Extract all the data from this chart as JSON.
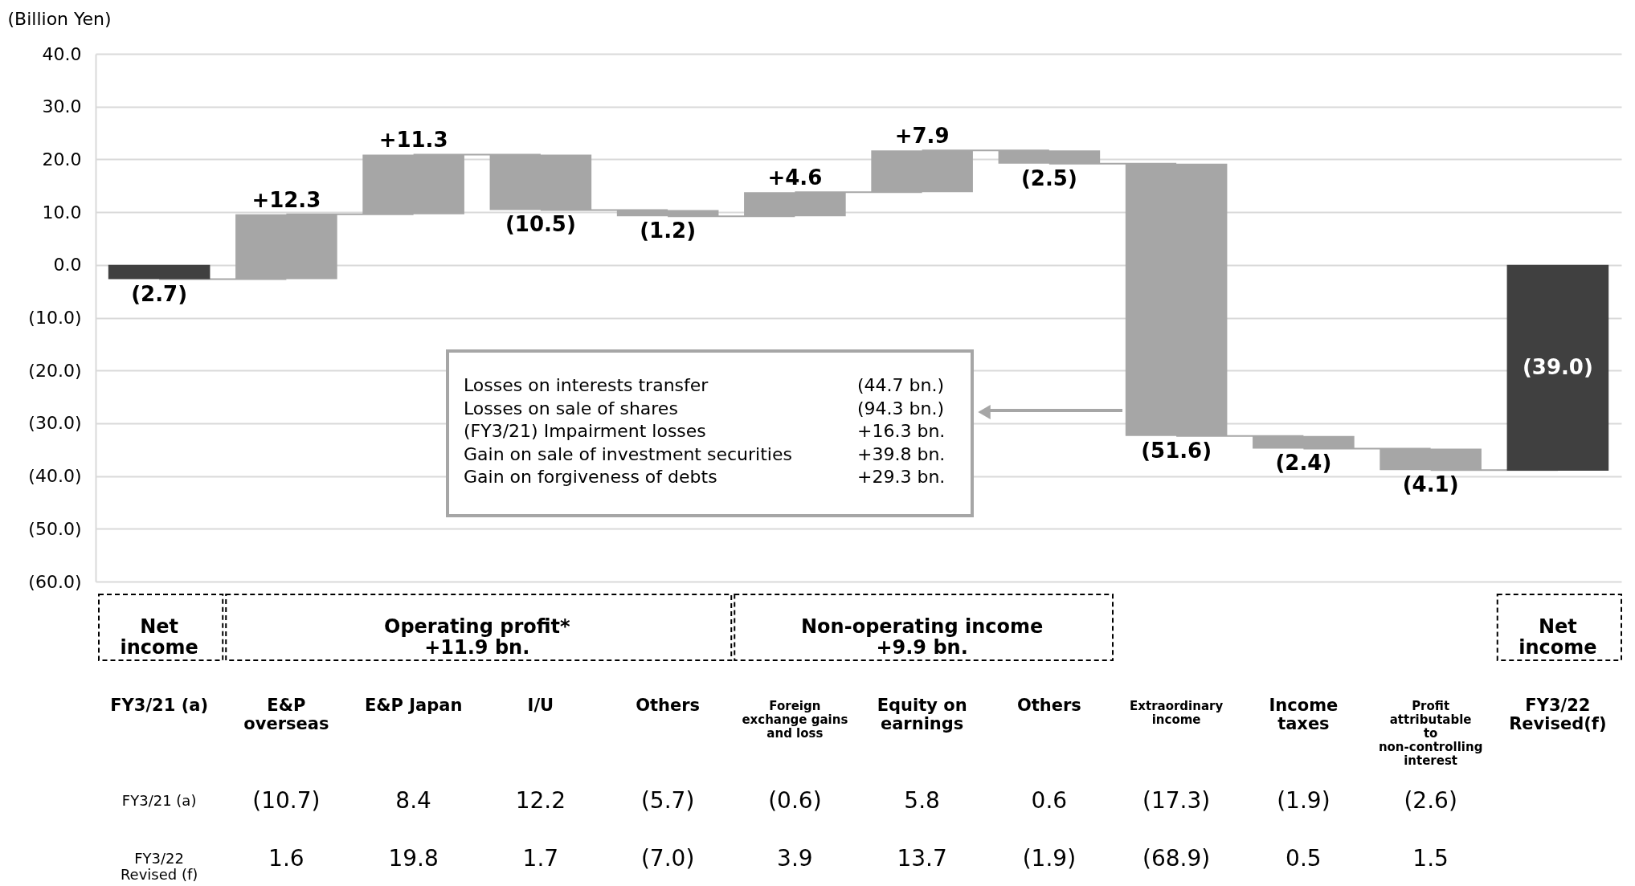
{
  "chart_data": {
    "type": "bar",
    "ylabel": "(Billion Yen)",
    "categories": [
      "FY3/21 (a)",
      "E&P overseas",
      "E&P Japan",
      "I/U",
      "Others",
      "Foreign exchange gains and loss",
      "Equity on earnings",
      "Others",
      "Extraordinary income",
      "Income taxes",
      "Profit attributable to non-controlling interest",
      "FY3/22 Revised(f)"
    ],
    "values": [
      -2.7,
      12.3,
      11.3,
      -10.5,
      -1.2,
      4.6,
      7.9,
      -2.5,
      -51.6,
      -2.4,
      -4.1,
      -39.0
    ],
    "base": [
      0,
      -2.7,
      9.6,
      20.9,
      10.4,
      9.2,
      13.8,
      21.7,
      19.2,
      -32.4,
      -34.8,
      0
    ],
    "colors": [
      "#404040",
      "#a6a6a6",
      "#a6a6a6",
      "#a6a6a6",
      "#a6a6a6",
      "#a6a6a6",
      "#a6a6a6",
      "#a6a6a6",
      "#a6a6a6",
      "#a6a6a6",
      "#a6a6a6",
      "#404040"
    ],
    "value_labels": [
      "(2.7)",
      "+12.3",
      "+11.3",
      "(10.5)",
      "(1.2)",
      "+4.6",
      "+7.9",
      "(2.5)",
      "(51.6)",
      "(2.4)",
      "(4.1)",
      "(39.0)"
    ],
    "ylim": [
      -60,
      40
    ],
    "yticks": [
      {
        "value": 40,
        "label": "40.0"
      },
      {
        "value": 30,
        "label": "30.0"
      },
      {
        "value": 20,
        "label": "20.0"
      },
      {
        "value": 10,
        "label": "10.0"
      },
      {
        "value": 0,
        "label": "0.0"
      },
      {
        "value": -10,
        "label": "(10.0)"
      },
      {
        "value": -20,
        "label": "(20.0)"
      },
      {
        "value": -30,
        "label": "(30.0)"
      },
      {
        "value": -40,
        "label": "(40.0)"
      },
      {
        "value": -50,
        "label": "(50.0)"
      },
      {
        "value": -60,
        "label": "(60.0)"
      }
    ],
    "grid": "y",
    "annotations": [
      "Net income",
      "Operating profit* +11.9 bn.",
      "Non-operating income +9.9 bn.",
      "Net income",
      "Losses on interests transfer",
      "(44.7 bn.)",
      "Losses on sale of shares",
      "(94.3 bn.)",
      "(FY3/21) Impairment losses",
      "+16.3 bn.",
      "Gain on sale of investment securities",
      "+39.8 bn.",
      "Gain on forgiveness of debts",
      "+29.3 bn.",
      "FY3/21 (a)",
      "(10.7)",
      "8.4",
      "12.2",
      "(5.7)",
      "(0.6)",
      "5.8",
      "0.6",
      "(17.3)",
      "(1.9)",
      "(2.6)",
      "FY3/22 Revised (f)",
      "1.6",
      "19.8",
      "1.7",
      "(7.0)",
      "3.9",
      "13.7",
      "(1.9)",
      "(68.9)",
      "0.5",
      "1.5"
    ]
  }
}
